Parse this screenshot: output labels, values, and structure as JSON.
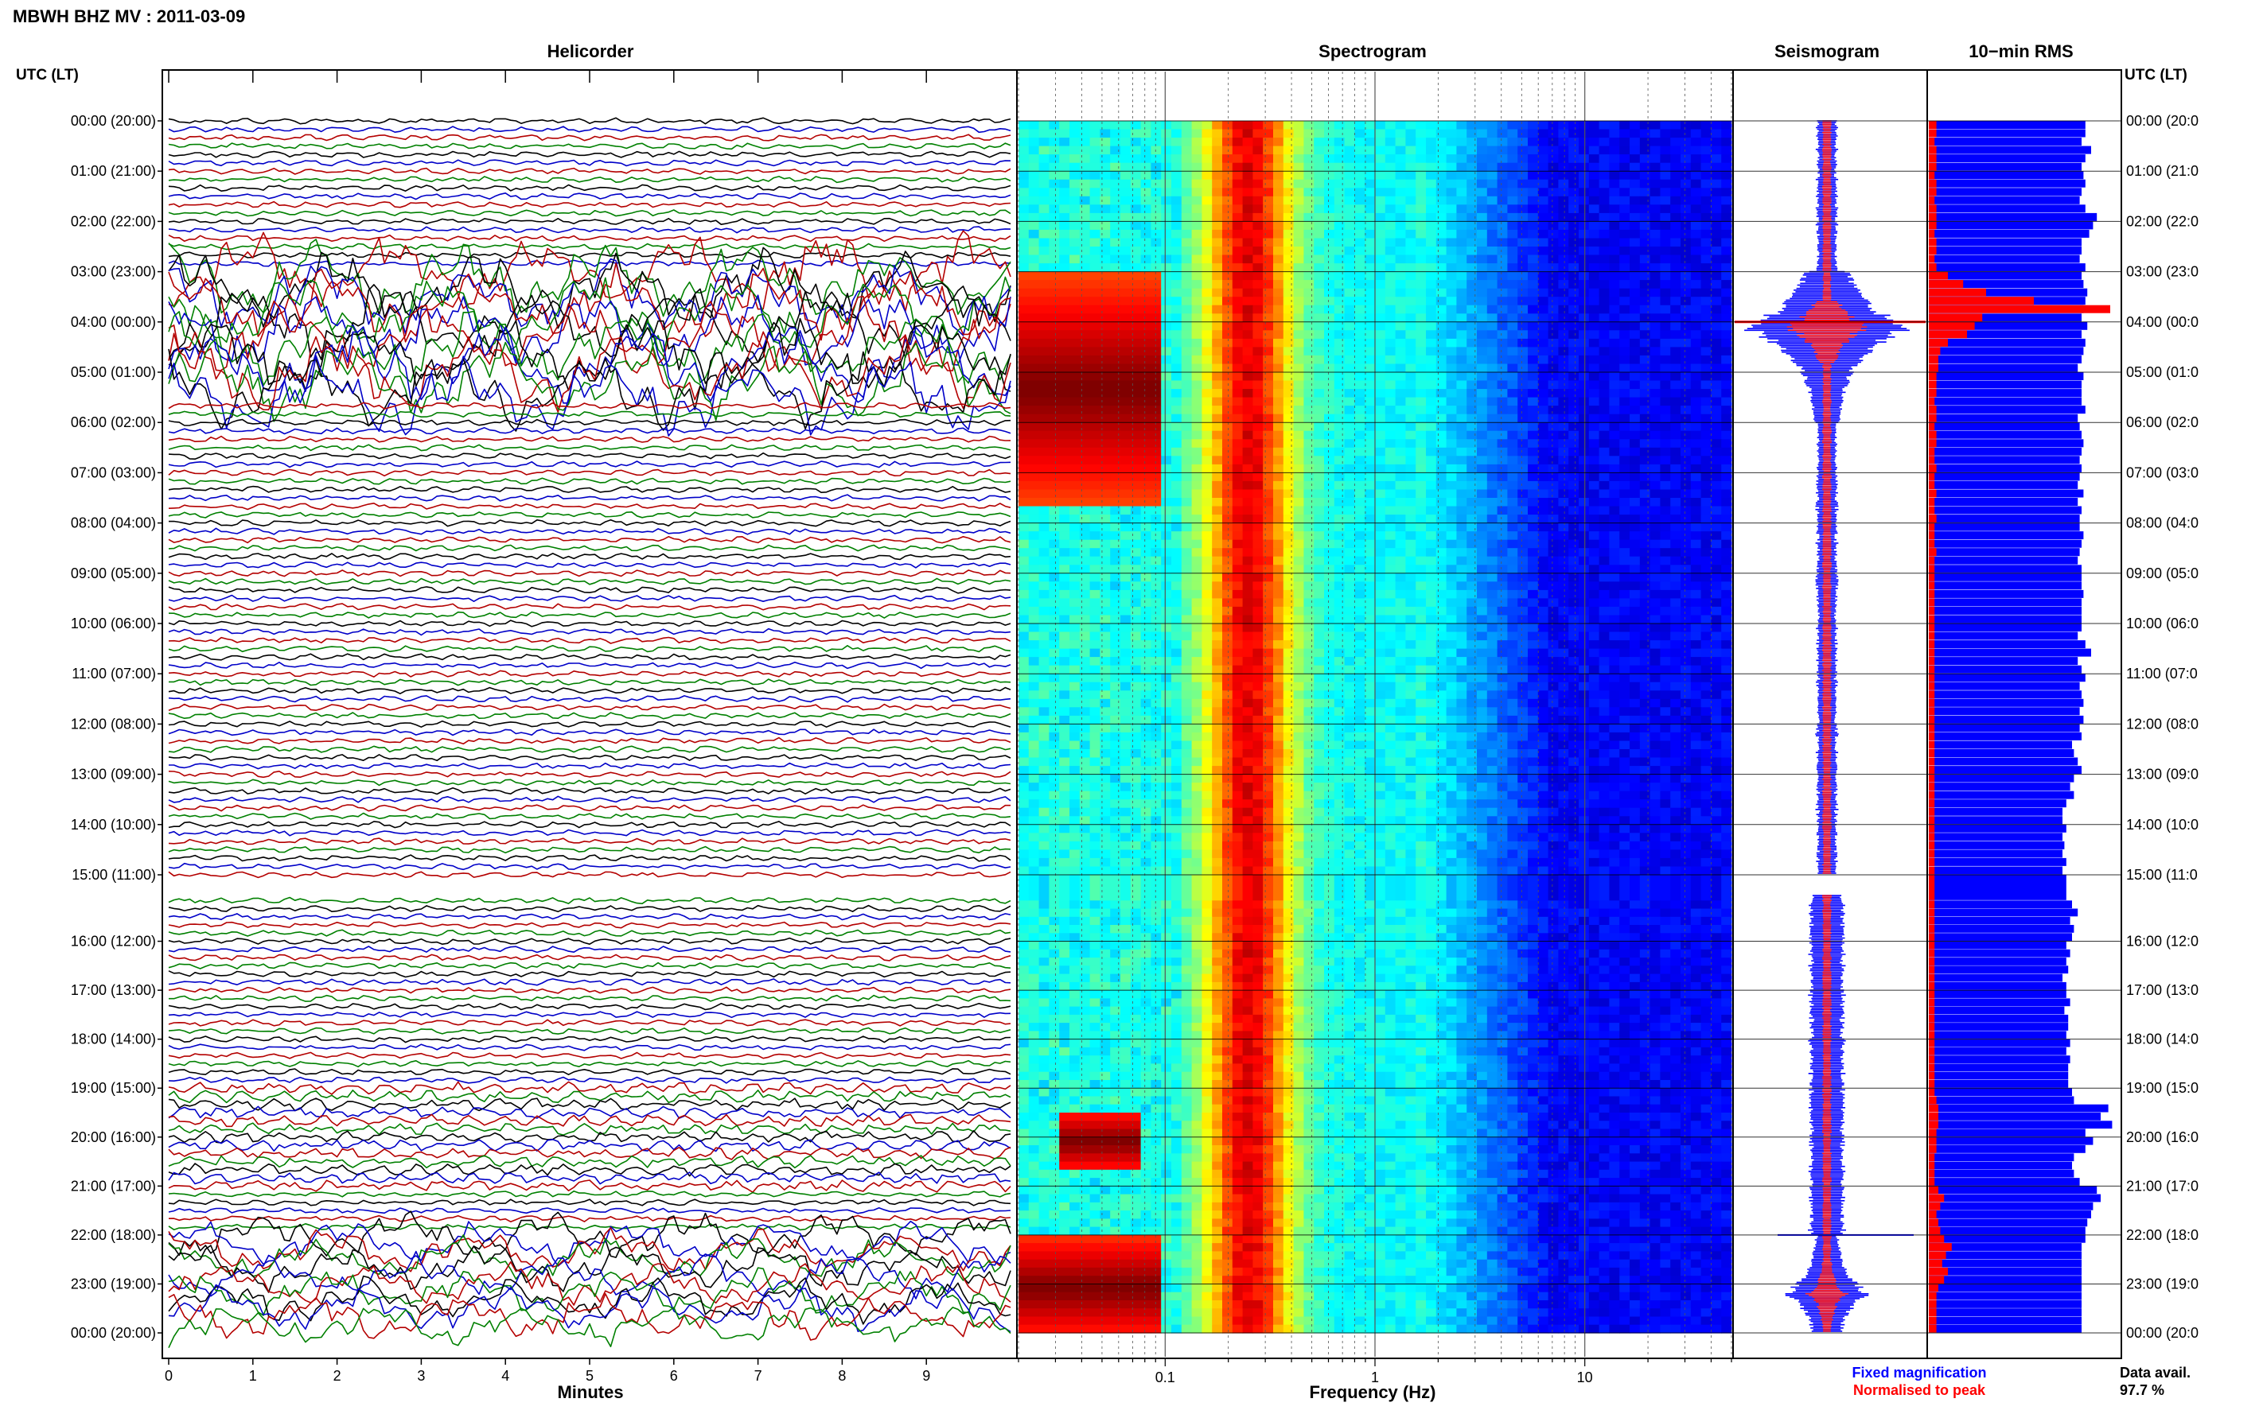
{
  "page_title": "MBWH BHZ MV : 2011-03-09",
  "chart_data": [
    {
      "type": "helicorder",
      "title": "Helicorder",
      "xlabel": "Minutes",
      "x_ticks": [
        "0",
        "1",
        "2",
        "3",
        "4",
        "5",
        "6",
        "7",
        "8",
        "9"
      ],
      "xlim": [
        0,
        10
      ],
      "row_minutes": 10,
      "trace_colors": [
        "#000000",
        "#0000c8",
        "#b40000",
        "#008000"
      ],
      "gap_after_hour": 15,
      "busy_periods": [
        {
          "from": "03:00",
          "to": "05:30",
          "level": "very high"
        },
        {
          "from": "22:00",
          "to": "23:59",
          "level": "high"
        },
        {
          "from": "19:00",
          "to": "21:00",
          "level": "elevated"
        }
      ]
    },
    {
      "type": "heatmap",
      "title": "Spectrogram",
      "xlabel": "Frequency (Hz)",
      "x_scale": "log",
      "xlim": [
        0.02,
        50
      ],
      "x_ticks": [
        "0.1",
        "1",
        "10"
      ],
      "colormap": "jet",
      "strong_low_frequency_energy": [
        {
          "from": "03:00",
          "to": "07:30",
          "freq_hz": [
            0.02,
            0.1
          ]
        },
        {
          "from": "19:30",
          "to": "20:30",
          "freq_hz": [
            0.03,
            0.08
          ]
        },
        {
          "from": "22:00",
          "to": "23:59",
          "freq_hz": [
            0.02,
            0.1
          ]
        }
      ]
    },
    {
      "type": "bar",
      "title": "Seismogram",
      "legend": [
        {
          "label": "Fixed magnification",
          "color": "#0000ff"
        },
        {
          "label": "Normalised to peak",
          "color": "#ff0000"
        }
      ]
    },
    {
      "type": "bar",
      "orientation": "horizontal",
      "title": "10−min RMS",
      "bin_minutes": 10,
      "blue_values_hours_0_to_15": [
        0.82,
        0.82,
        0.8,
        0.85,
        0.82,
        0.8,
        0.81,
        0.82,
        0.8,
        0.79,
        0.82,
        0.88,
        0.86,
        0.84,
        0.8,
        0.8,
        0.79,
        0.82,
        0.8,
        0.81,
        0.83,
        0.82,
        0.81,
        0.8,
        0.83,
        0.8,
        0.82,
        0.81,
        0.8,
        0.78,
        0.81,
        0.8,
        0.8,
        0.8,
        0.82,
        0.78,
        0.79,
        0.8,
        0.81,
        0.8,
        0.79,
        0.8,
        0.79,
        0.78,
        0.81,
        0.78,
        0.8,
        0.79,
        0.79,
        0.81,
        0.8,
        0.79,
        0.78,
        0.8,
        0.8,
        0.8,
        0.81,
        0.8,
        0.8,
        0.8,
        0.8,
        0.78,
        0.82,
        0.85,
        0.78,
        0.8,
        0.82,
        0.79,
        0.8,
        0.81,
        0.79,
        0.81,
        0.79,
        0.8,
        0.75,
        0.76,
        0.78,
        0.8,
        0.76,
        0.74,
        0.76,
        0.72,
        0.7,
        0.7,
        0.72,
        0.7,
        0.71,
        0.7,
        0.72,
        0.7
      ],
      "red_values_hours_0_to_15": [
        0.04,
        0.04,
        0.03,
        0.04,
        0.04,
        0.04,
        0.03,
        0.04,
        0.04,
        0.03,
        0.04,
        0.04,
        0.04,
        0.03,
        0.04,
        0.04,
        0.03,
        0.04,
        0.1,
        0.18,
        0.3,
        0.55,
        0.95,
        0.28,
        0.24,
        0.2,
        0.1,
        0.06,
        0.05,
        0.05,
        0.04,
        0.04,
        0.04,
        0.03,
        0.04,
        0.04,
        0.03,
        0.04,
        0.04,
        0.03,
        0.03,
        0.04,
        0.03,
        0.03,
        0.04,
        0.03,
        0.03,
        0.04,
        0.03,
        0.03,
        0.03,
        0.04,
        0.03,
        0.03,
        0.03,
        0.03,
        0.03,
        0.03,
        0.03,
        0.03,
        0.03,
        0.03,
        0.03,
        0.03,
        0.03,
        0.03,
        0.03,
        0.03,
        0.03,
        0.03,
        0.03,
        0.03,
        0.03,
        0.03,
        0.03,
        0.03,
        0.03,
        0.03,
        0.03,
        0.03,
        0.03,
        0.03,
        0.03,
        0.03,
        0.03,
        0.03,
        0.03,
        0.03,
        0.03,
        0.03
      ],
      "blue_values_hours_15_to_24": [
        0.72,
        0.75,
        0.78,
        0.74,
        0.76,
        0.75,
        0.72,
        0.74,
        0.72,
        0.73,
        0.7,
        0.72,
        0.72,
        0.74,
        0.71,
        0.73,
        0.73,
        0.72,
        0.74,
        0.72,
        0.74,
        0.73,
        0.73,
        0.73,
        0.75,
        0.76,
        0.94,
        0.9,
        0.96,
        0.82,
        0.86,
        0.82,
        0.76,
        0.75,
        0.76,
        0.79,
        0.88,
        0.9,
        0.86,
        0.85,
        0.83,
        0.82,
        0.82,
        0.8,
        0.8,
        0.8,
        0.8,
        0.8,
        0.8,
        0.8,
        0.8,
        0.8,
        0.8,
        0.8
      ],
      "red_values_hours_15_to_24": [
        0.03,
        0.03,
        0.03,
        0.03,
        0.03,
        0.03,
        0.03,
        0.03,
        0.03,
        0.03,
        0.03,
        0.03,
        0.03,
        0.03,
        0.03,
        0.03,
        0.03,
        0.03,
        0.03,
        0.03,
        0.03,
        0.03,
        0.03,
        0.03,
        0.03,
        0.04,
        0.05,
        0.05,
        0.05,
        0.04,
        0.04,
        0.04,
        0.03,
        0.03,
        0.03,
        0.03,
        0.05,
        0.08,
        0.06,
        0.04,
        0.05,
        0.06,
        0.08,
        0.12,
        0.09,
        0.07,
        0.1,
        0.08,
        0.05,
        0.04,
        0.04,
        0.04,
        0.04,
        0.04
      ]
    }
  ],
  "time_axis": {
    "header": "UTC (LT)",
    "labels": [
      "00:00 (20:00)",
      "01:00 (21:00)",
      "02:00 (22:00)",
      "03:00 (23:00)",
      "04:00 (00:00)",
      "05:00 (01:00)",
      "06:00 (02:00)",
      "07:00 (03:00)",
      "08:00 (04:00)",
      "09:00 (05:00)",
      "10:00 (06:00)",
      "11:00 (07:00)",
      "12:00 (08:00)",
      "13:00 (09:00)",
      "14:00 (10:00)",
      "15:00 (11:00)",
      "16:00 (12:00)",
      "17:00 (13:00)",
      "18:00 (14:00)",
      "19:00 (15:00)",
      "20:00 (16:00)",
      "21:00 (17:00)",
      "22:00 (18:00)",
      "23:00 (19:00)",
      "00:00 (20:00)"
    ],
    "right_labels": [
      "00:00 (20:0",
      "01:00 (21:0",
      "02:00 (22:0",
      "03:00 (23:0",
      "04:00 (00:0",
      "05:00 (01:0",
      "06:00 (02:0",
      "07:00 (03:0",
      "08:00 (04:0",
      "09:00 (05:0",
      "10:00 (06:0",
      "11:00 (07:0",
      "12:00 (08:0",
      "13:00 (09:0",
      "14:00 (10:0",
      "15:00 (11:0",
      "16:00 (12:0",
      "17:00 (13:0",
      "18:00 (14:0",
      "19:00 (15:0",
      "20:00 (16:0",
      "21:00 (17:0",
      "22:00 (18:0",
      "23:00 (19:0",
      "00:00 (20:0"
    ]
  },
  "footer": {
    "data_avail_label": "Data avail.",
    "data_avail_value": "97.7 %"
  }
}
